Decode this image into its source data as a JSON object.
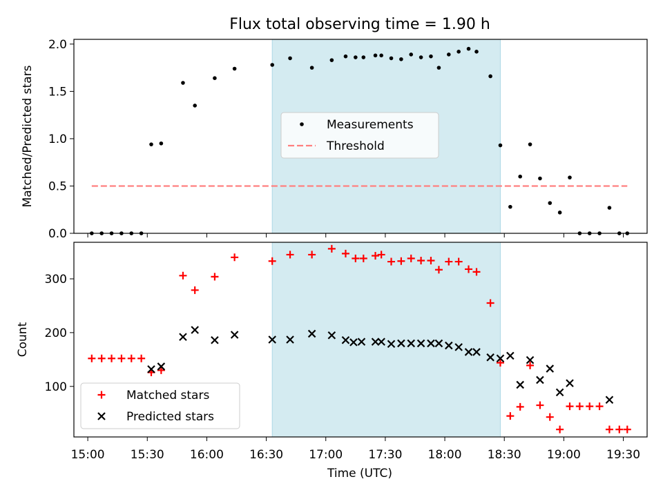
{
  "chart_data": {
    "title": "Flux total observing time = 1.90 h",
    "shaded_region": {
      "start": "16:33",
      "end": "18:28",
      "color": "#d4ebf1"
    },
    "xlabel": "Time (UTC)",
    "x_axis": {
      "range": [
        "14:53",
        "19:42"
      ],
      "ticks": [
        "15:00",
        "15:30",
        "16:00",
        "16:30",
        "17:00",
        "17:30",
        "18:00",
        "18:30",
        "19:00",
        "19:30"
      ]
    },
    "panels": [
      {
        "type": "scatter",
        "ylabel": "Matched/Predicted stars",
        "ylim": [
          0,
          2.05
        ],
        "yticks": [
          "0.0",
          "0.5",
          "1.0",
          "1.5",
          "2.0"
        ],
        "legend": {
          "position": "center",
          "entries": [
            "Measurements",
            "Threshold"
          ]
        },
        "series": [
          {
            "name": "Measurements",
            "marker": "dot",
            "color": "#000000",
            "x": [
              "15:02",
              "15:07",
              "15:12",
              "15:17",
              "15:22",
              "15:27",
              "15:32",
              "15:37",
              "15:48",
              "15:54",
              "16:04",
              "16:14",
              "16:33",
              "16:42",
              "16:53",
              "17:03",
              "17:10",
              "17:15",
              "17:19",
              "17:25",
              "17:28",
              "17:33",
              "17:38",
              "17:43",
              "17:48",
              "17:53",
              "17:57",
              "18:02",
              "18:07",
              "18:12",
              "18:16",
              "18:23",
              "18:28",
              "18:33",
              "18:38",
              "18:43",
              "18:48",
              "18:53",
              "18:58",
              "19:03",
              "19:08",
              "19:13",
              "19:18",
              "19:23",
              "19:28",
              "19:32"
            ],
            "y": [
              0,
              0,
              0,
              0,
              0,
              0,
              0.94,
              0.95,
              1.59,
              1.35,
              1.64,
              1.74,
              1.78,
              1.85,
              1.75,
              1.83,
              1.87,
              1.86,
              1.86,
              1.88,
              1.88,
              1.85,
              1.84,
              1.89,
              1.86,
              1.87,
              1.75,
              1.89,
              1.92,
              1.95,
              1.92,
              1.66,
              0.93,
              0.28,
              0.6,
              0.94,
              0.58,
              0.32,
              0.22,
              0.59,
              0,
              0,
              0,
              0.27,
              0,
              0
            ]
          },
          {
            "name": "Threshold",
            "marker": "dashed-line",
            "color": "#ff7f7f",
            "x": [
              "15:02",
              "19:32"
            ],
            "y": [
              0.5,
              0.5
            ]
          }
        ]
      },
      {
        "type": "scatter",
        "ylabel": "Count",
        "ylim": [
          6,
          368
        ],
        "yticks": [
          "100",
          "200",
          "300"
        ],
        "legend": {
          "position": "lower-left",
          "entries": [
            "Matched stars",
            "Predicted stars"
          ]
        },
        "series": [
          {
            "name": "Matched stars",
            "marker": "plus",
            "color": "#ff0000",
            "x": [
              "15:02",
              "15:07",
              "15:12",
              "15:17",
              "15:22",
              "15:27",
              "15:32",
              "15:37",
              "15:48",
              "15:54",
              "16:04",
              "16:14",
              "16:33",
              "16:42",
              "16:53",
              "17:03",
              "17:10",
              "17:15",
              "17:19",
              "17:25",
              "17:28",
              "17:33",
              "17:38",
              "17:43",
              "17:48",
              "17:53",
              "17:57",
              "18:02",
              "18:07",
              "18:12",
              "18:16",
              "18:23",
              "18:28",
              "18:33",
              "18:38",
              "18:43",
              "18:48",
              "18:53",
              "18:58",
              "19:03",
              "19:08",
              "19:13",
              "19:18",
              "19:23",
              "19:28",
              "19:32"
            ],
            "y": [
              152,
              152,
              152,
              152,
              152,
              152,
              126,
              130,
              306,
              279,
              304,
              340,
              333,
              345,
              345,
              356,
              347,
              338,
              338,
              343,
              345,
              332,
              333,
              338,
              334,
              334,
              317,
              332,
              332,
              318,
              313,
              255,
              144,
              45,
              62,
              139,
              65,
              43,
              20,
              63,
              63,
              63,
              63,
              20,
              20,
              20
            ]
          },
          {
            "name": "Predicted stars",
            "marker": "x",
            "color": "#000000",
            "x": [
              "15:32",
              "15:37",
              "15:48",
              "15:54",
              "16:04",
              "16:14",
              "16:33",
              "16:42",
              "16:53",
              "17:03",
              "17:10",
              "17:14",
              "17:18",
              "17:25",
              "17:28",
              "17:33",
              "17:38",
              "17:43",
              "17:48",
              "17:53",
              "17:57",
              "18:02",
              "18:07",
              "18:12",
              "18:16",
              "18:23",
              "18:28",
              "18:33",
              "18:38",
              "18:43",
              "18:48",
              "18:53",
              "18:58",
              "19:03",
              "19:23"
            ],
            "y": [
              132,
              137,
              192,
              205,
              186,
              196,
              187,
              187,
              198,
              195,
              186,
              182,
              183,
              183,
              183,
              179,
              180,
              180,
              180,
              180,
              180,
              176,
              173,
              164,
              164,
              154,
              152,
              157,
              103,
              149,
              112,
              133,
              89,
              106,
              75
            ]
          }
        ]
      }
    ]
  }
}
